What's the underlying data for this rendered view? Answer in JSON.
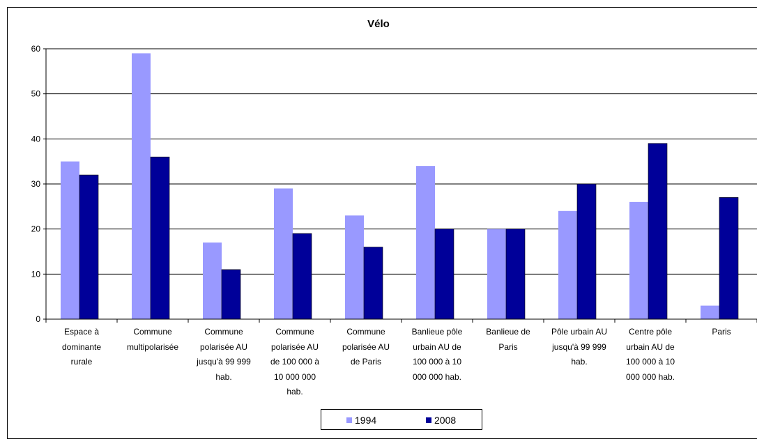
{
  "chart_data": {
    "type": "bar",
    "title": "Vélo",
    "xlabel": "",
    "ylabel": "",
    "ylim": [
      0,
      60
    ],
    "yticks": [
      0,
      10,
      20,
      30,
      40,
      50,
      60
    ],
    "grid": true,
    "legend_position": "bottom",
    "categories": [
      "Espace à dominante rurale",
      "Commune multipolarisée",
      "Commune polarisée AU jusqu'à 99 999 hab.",
      "Commune polarisée  AU de 100 000 à 10 000 000 hab.",
      "Commune polarisée AU de Paris",
      "Banlieue pôle urbain AU de 100 000 à 10 000 000 hab.",
      "Banlieue de Paris",
      "Pôle urbain AU jusqu'à 99 999 hab.",
      "Centre pôle urbain AU de 100 000 à 10 000 000 hab.",
      "Paris"
    ],
    "category_label_lines": [
      [
        "Espace à",
        "dominante",
        "rurale"
      ],
      [
        "Commune",
        "multipolarisée"
      ],
      [
        "Commune",
        "polarisée AU",
        "jusqu'à 99 999",
        "hab."
      ],
      [
        "Commune",
        "polarisée  AU",
        "de 100 000 à",
        "10 000 000",
        "hab."
      ],
      [
        "Commune",
        "polarisée AU",
        "de Paris"
      ],
      [
        "Banlieue pôle",
        "urbain AU de",
        "100 000 à 10",
        "000 000 hab."
      ],
      [
        "Banlieue de",
        "Paris"
      ],
      [
        "Pôle urbain AU",
        "jusqu'à 99 999",
        "hab."
      ],
      [
        "Centre pôle",
        "urbain AU de",
        "100 000 à 10",
        "000 000 hab."
      ],
      [
        "Paris"
      ]
    ],
    "series": [
      {
        "name": "1994",
        "color": "#9999ff",
        "values": [
          35,
          59,
          17,
          29,
          23,
          34,
          20,
          24,
          26,
          3
        ]
      },
      {
        "name": "2008",
        "color": "#000099",
        "values": [
          32,
          36,
          11,
          19,
          16,
          20,
          20,
          30,
          39,
          27
        ]
      }
    ]
  }
}
